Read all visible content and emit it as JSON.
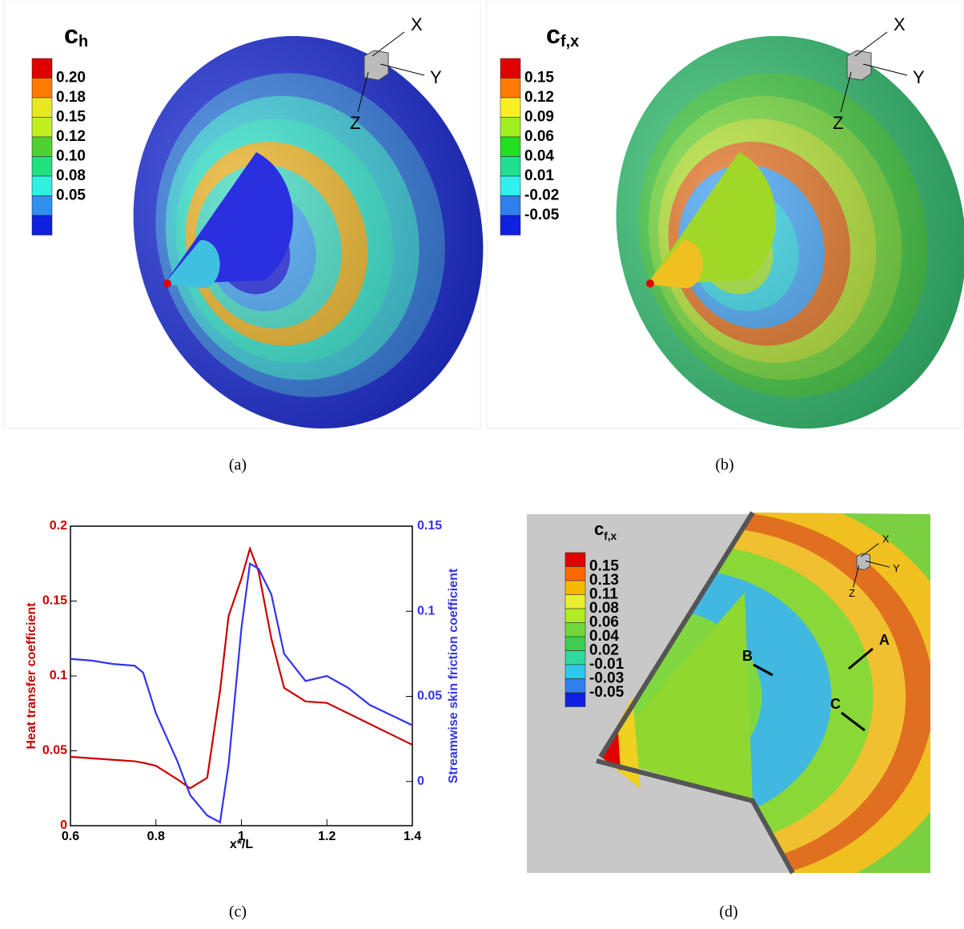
{
  "panels": {
    "a": {
      "caption": "(a)",
      "symbol": "c",
      "subscript": "h",
      "levels": [
        "0.20",
        "0.18",
        "0.15",
        "0.12",
        "0.10",
        "0.08",
        "0.05"
      ],
      "axes": [
        "X",
        "Y",
        "Z"
      ]
    },
    "b": {
      "caption": "(b)",
      "symbol": "c",
      "subscript": "f,x",
      "levels": [
        "0.15",
        "0.12",
        "0.09",
        "0.06",
        "0.04",
        "0.01",
        "-0.02",
        "-0.05"
      ],
      "axes": [
        "X",
        "Y",
        "Z"
      ]
    },
    "d": {
      "caption": "(d)",
      "symbol": "c",
      "subscript": "f,x",
      "levels": [
        "0.15",
        "0.13",
        "0.11",
        "0.08",
        "0.06",
        "0.04",
        "0.02",
        "-0.01",
        "-0.03",
        "-0.05"
      ],
      "axes": [
        "X",
        "Y",
        "Z"
      ],
      "annotations": [
        "A",
        "B",
        "C"
      ]
    }
  },
  "chart_data": {
    "type": "line",
    "caption": "(c)",
    "x_label": "x*/L",
    "y_label": "Heat transfer coefficient",
    "y2_label": "Streamwise skin friction coefficient",
    "x": [
      0.6,
      0.65,
      0.7,
      0.75,
      0.77,
      0.8,
      0.85,
      0.88,
      0.92,
      0.95,
      0.97,
      1.0,
      1.02,
      1.04,
      1.07,
      1.1,
      1.15,
      1.2,
      1.25,
      1.3,
      1.35,
      1.4
    ],
    "series": [
      {
        "color": "#cc0000",
        "axis": "y",
        "values": [
          0.046,
          0.045,
          0.044,
          0.043,
          0.042,
          0.04,
          0.031,
          0.025,
          0.032,
          0.09,
          0.14,
          0.165,
          0.185,
          0.17,
          0.125,
          0.092,
          0.083,
          0.082,
          0.075,
          0.068,
          0.061,
          0.054
        ]
      },
      {
        "color": "#3333ee",
        "axis": "y2",
        "values": [
          0.072,
          0.071,
          0.069,
          0.068,
          0.064,
          0.04,
          0.012,
          -0.008,
          -0.02,
          -0.024,
          0.01,
          0.09,
          0.128,
          0.125,
          0.11,
          0.075,
          0.059,
          0.062,
          0.055,
          0.045,
          0.039,
          0.033
        ]
      }
    ],
    "xlim": [
      0.6,
      1.4
    ],
    "xticks": [
      0.6,
      0.8,
      {
        "value": 1.0,
        "label": "1"
      },
      1.2,
      1.4
    ],
    "ylim": [
      0,
      0.2
    ],
    "yticks": [
      0,
      0.05,
      0.1,
      0.15,
      0.2
    ],
    "y2lim": [
      -0.026,
      0.15
    ],
    "y2ticks": [
      0,
      0.05,
      0.1,
      0.15
    ]
  }
}
